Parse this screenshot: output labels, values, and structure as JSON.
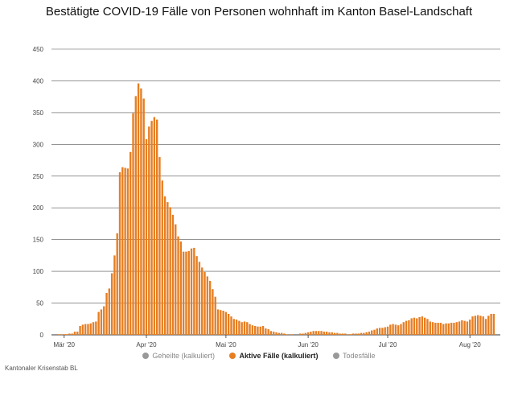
{
  "chart_data": {
    "type": "bar",
    "title": "Bestätigte COVID-19 Fälle von Personen wohnhaft im Kanton Basel-Landschaft",
    "xlabel": "",
    "ylabel": "",
    "ylim": [
      0,
      450
    ],
    "yticks": [
      0,
      50,
      100,
      150,
      200,
      250,
      300,
      350,
      400,
      450
    ],
    "grid": true,
    "legend_position": "bottom",
    "x_tick_labels": [
      "Mär '20",
      "Apr '20",
      "Mai '20",
      "Jun '20",
      "Jul '20",
      "Aug '20"
    ],
    "x_start": "2020-02-28",
    "series": [
      {
        "name": "Aktive Fälle (kalkuliert)",
        "color": "#e67e22",
        "values": [
          1,
          1,
          1,
          1,
          2,
          2,
          5,
          5,
          14,
          16,
          17,
          17,
          18,
          20,
          21,
          36,
          40,
          45,
          66,
          73,
          97,
          125,
          160,
          256,
          264,
          263,
          262,
          288,
          349,
          376,
          396,
          388,
          372,
          308,
          328,
          337,
          343,
          339,
          280,
          243,
          218,
          209,
          201,
          189,
          174,
          155,
          147,
          131,
          131,
          132,
          136,
          137,
          124,
          115,
          106,
          99,
          92,
          85,
          72,
          60,
          40,
          39,
          38,
          36,
          33,
          29,
          25,
          24,
          22,
          20,
          21,
          20,
          17,
          15,
          14,
          13,
          13,
          14,
          10,
          9,
          6,
          5,
          4,
          3,
          3,
          2,
          1,
          1,
          1,
          0,
          0,
          2,
          2,
          3,
          4,
          5,
          6,
          6,
          6,
          6,
          5,
          5,
          4,
          4,
          3,
          3,
          2,
          2,
          2,
          1,
          1,
          2,
          2,
          2,
          3,
          3,
          4,
          5,
          7,
          8,
          10,
          11,
          11,
          12,
          13,
          16,
          17,
          16,
          15,
          17,
          20,
          22,
          23,
          26,
          27,
          26,
          28,
          29,
          27,
          25,
          21,
          20,
          19,
          19,
          19,
          17,
          18,
          18,
          19,
          19,
          20,
          21,
          23,
          22,
          21,
          24,
          29,
          30,
          31,
          30,
          29,
          25,
          30,
          33,
          33
        ]
      }
    ]
  },
  "legend": {
    "items": [
      {
        "label": "Geheilte (kalkuliert)",
        "color": "#999999"
      },
      {
        "label": "Aktive Fälle (kalkuliert)",
        "color": "#e67e22"
      },
      {
        "label": "Todesfälle",
        "color": "#999999"
      }
    ]
  },
  "footer": {
    "source": "Kantonaler Krisenstab BL"
  }
}
